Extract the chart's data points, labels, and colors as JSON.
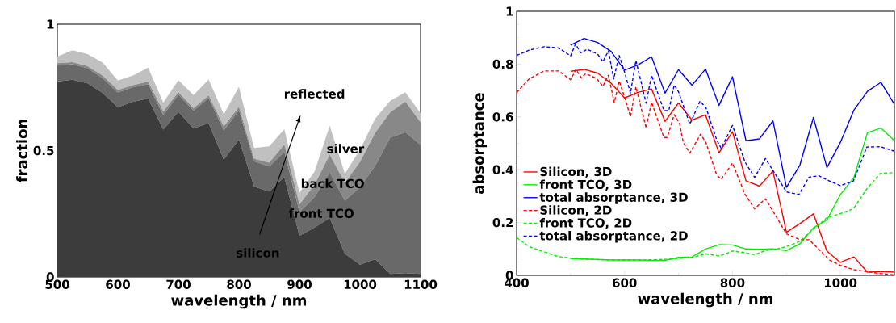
{
  "chart_data": [
    {
      "type": "area",
      "stacked": true,
      "xlabel": "wavelength / nm",
      "ylabel": "fraction",
      "x": [
        500,
        525,
        550,
        575,
        600,
        625,
        650,
        675,
        700,
        725,
        750,
        775,
        800,
        825,
        850,
        875,
        900,
        925,
        950,
        975,
        1000,
        1025,
        1050,
        1075,
        1100
      ],
      "series": [
        {
          "color": "#3c3c3c",
          "values": [
            0.773,
            0.78,
            0.766,
            0.728,
            0.672,
            0.693,
            0.706,
            0.583,
            0.653,
            0.588,
            0.608,
            0.464,
            0.544,
            0.358,
            0.338,
            0.395,
            0.163,
            0.196,
            0.233,
            0.092,
            0.049,
            0.07,
            0.012,
            0.015,
            0.012
          ]
        },
        {
          "color": "#696969",
          "values": [
            0.063,
            0.062,
            0.06,
            0.058,
            0.058,
            0.058,
            0.057,
            0.057,
            0.068,
            0.07,
            0.1,
            0.116,
            0.115,
            0.1,
            0.099,
            0.1,
            0.094,
            0.12,
            0.18,
            0.21,
            0.306,
            0.37,
            0.54,
            0.558,
            0.51
          ]
        },
        {
          "color": "#888888",
          "values": [
            0.01,
            0.008,
            0.008,
            0.01,
            0.01,
            0.008,
            0.01,
            0.015,
            0.01,
            0.01,
            0.01,
            0.015,
            0.014,
            0.01,
            0.015,
            0.029,
            0.03,
            0.05,
            0.07,
            0.07,
            0.1,
            0.13,
            0.1,
            0.121,
            0.09
          ]
        },
        {
          "color": "#c0c0c0",
          "values": [
            0.026,
            0.047,
            0.048,
            0.052,
            0.037,
            0.038,
            0.055,
            0.035,
            0.048,
            0.052,
            0.063,
            0.049,
            0.079,
            0.042,
            0.065,
            0.061,
            0.046,
            0.052,
            0.115,
            0.036,
            0.049,
            0.056,
            0.045,
            0.037,
            0.036
          ]
        }
      ],
      "xlim": [
        500,
        1100
      ],
      "xticks": [
        500,
        600,
        700,
        800,
        900,
        1000,
        1100
      ],
      "ylim": [
        0,
        1
      ],
      "yticks": [
        0,
        0.5,
        1
      ],
      "annotations": [
        "reflected",
        "silver",
        "back TCO",
        "front TCO",
        "silicon"
      ]
    },
    {
      "type": "line",
      "xlabel": "wavelength / nm",
      "ylabel": "absorptance",
      "legend": "left",
      "xlim": [
        400,
        1100
      ],
      "xticks": [
        400,
        600,
        800,
        1000
      ],
      "ylim": [
        0,
        1
      ],
      "yticks": [
        0,
        0.2,
        0.4,
        0.6,
        0.8,
        1
      ],
      "series": [
        {
          "name": "Silicon, 3D",
          "color": "#ff0000",
          "line_style": "solid",
          "x": [
            500,
            525,
            550,
            575,
            600,
            625,
            650,
            675,
            700,
            725,
            750,
            775,
            800,
            825,
            850,
            875,
            900,
            925,
            950,
            975,
            1000,
            1025,
            1050,
            1075,
            1100
          ],
          "values": [
            0.773,
            0.78,
            0.766,
            0.728,
            0.672,
            0.693,
            0.706,
            0.583,
            0.653,
            0.588,
            0.608,
            0.464,
            0.544,
            0.358,
            0.338,
            0.395,
            0.163,
            0.196,
            0.233,
            0.092,
            0.049,
            0.07,
            0.012,
            0.015,
            0.012
          ]
        },
        {
          "name": "front TCO, 3D",
          "color": "#00ee00",
          "line_style": "solid",
          "x": [
            500,
            525,
            550,
            575,
            600,
            625,
            650,
            675,
            700,
            725,
            750,
            775,
            800,
            825,
            850,
            875,
            900,
            925,
            950,
            975,
            1000,
            1025,
            1050,
            1075,
            1100
          ],
          "values": [
            0.063,
            0.062,
            0.06,
            0.058,
            0.058,
            0.058,
            0.057,
            0.057,
            0.068,
            0.07,
            0.1,
            0.116,
            0.115,
            0.1,
            0.099,
            0.1,
            0.094,
            0.12,
            0.18,
            0.21,
            0.306,
            0.37,
            0.54,
            0.558,
            0.51
          ]
        },
        {
          "name": "total absorptance, 3D",
          "color": "#0000ff",
          "line_style": "solid",
          "x": [
            500,
            525,
            550,
            575,
            600,
            625,
            650,
            675,
            700,
            725,
            750,
            775,
            800,
            825,
            850,
            875,
            900,
            925,
            950,
            975,
            1000,
            1025,
            1050,
            1075,
            1100
          ],
          "values": [
            0.872,
            0.897,
            0.882,
            0.848,
            0.777,
            0.797,
            0.828,
            0.69,
            0.779,
            0.72,
            0.781,
            0.644,
            0.752,
            0.51,
            0.517,
            0.585,
            0.333,
            0.418,
            0.598,
            0.408,
            0.504,
            0.626,
            0.697,
            0.731,
            0.648
          ]
        },
        {
          "name": "Silicon, 2D",
          "color": "#ff0000",
          "line_style": "dashed",
          "x": [
            400,
            423,
            451,
            478,
            500,
            510,
            520,
            528,
            548,
            560,
            570,
            581,
            590,
            600,
            611,
            621,
            640,
            650,
            673,
            679,
            692,
            702,
            709,
            721,
            741,
            751,
            771,
            779,
            800,
            823,
            841,
            861,
            880,
            900,
            925,
            942,
            980,
            1000,
            1024,
            1049,
            1074,
            1099
          ],
          "values": [
            0.692,
            0.744,
            0.774,
            0.774,
            0.741,
            0.78,
            0.748,
            0.764,
            0.746,
            0.716,
            0.758,
            0.654,
            0.736,
            0.675,
            0.601,
            0.714,
            0.558,
            0.656,
            0.522,
            0.522,
            0.609,
            0.575,
            0.502,
            0.463,
            0.535,
            0.502,
            0.379,
            0.364,
            0.425,
            0.308,
            0.252,
            0.29,
            0.226,
            0.157,
            0.135,
            0.135,
            0.058,
            0.038,
            0.022,
            0.014,
            0.007,
            0.002
          ]
        },
        {
          "name": "front TCO, 2D",
          "color": "#00ee00",
          "line_style": "dashed",
          "x": [
            400,
            423,
            451,
            478,
            500,
            533,
            582,
            632,
            682,
            725,
            751,
            776,
            800,
            823,
            841,
            861,
            880,
            900,
            925,
            950,
            975,
            1000,
            1024,
            1049,
            1074,
            1099
          ],
          "values": [
            0.143,
            0.109,
            0.089,
            0.071,
            0.065,
            0.061,
            0.058,
            0.058,
            0.061,
            0.068,
            0.081,
            0.073,
            0.092,
            0.086,
            0.078,
            0.094,
            0.099,
            0.109,
            0.129,
            0.175,
            0.218,
            0.234,
            0.252,
            0.328,
            0.386,
            0.389
          ]
        },
        {
          "name": "total absorptance, 2D",
          "color": "#0000ff",
          "line_style": "dashed",
          "x": [
            400,
            423,
            451,
            478,
            500,
            509,
            519,
            531,
            550,
            560,
            570,
            580,
            590,
            600,
            611,
            621,
            640,
            650,
            673,
            682,
            692,
            700,
            721,
            740,
            751,
            771,
            779,
            800,
            823,
            841,
            861,
            876,
            900,
            923,
            942,
            960,
            980,
            1000,
            1024,
            1049,
            1074,
            1099
          ],
          "values": [
            0.833,
            0.853,
            0.866,
            0.861,
            0.831,
            0.876,
            0.843,
            0.856,
            0.838,
            0.809,
            0.85,
            0.744,
            0.833,
            0.77,
            0.69,
            0.814,
            0.652,
            0.758,
            0.624,
            0.624,
            0.721,
            0.695,
            0.573,
            0.66,
            0.634,
            0.512,
            0.481,
            0.568,
            0.43,
            0.371,
            0.442,
            0.394,
            0.316,
            0.306,
            0.372,
            0.377,
            0.357,
            0.34,
            0.357,
            0.486,
            0.487,
            0.471
          ]
        }
      ]
    }
  ]
}
